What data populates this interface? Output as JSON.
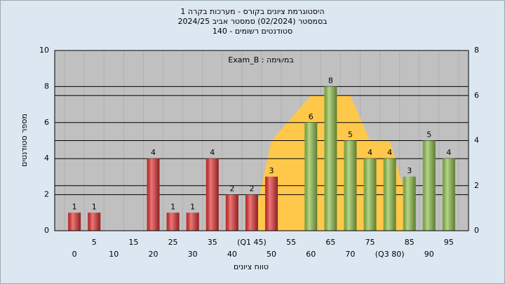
{
  "chart_data": {
    "type": "bar",
    "title": [
      "היסטוגרמת ציונים בקורס - מערכות בקרה 1",
      "בסמסטר  (02/2024)  סמסטר אביב 2024/25",
      "סטודנטים רשומים - 140"
    ],
    "annotation": "במשימה : Exam_B",
    "y_label": "מספר סטודנטים",
    "x_label": "טווח ציונים",
    "categories": [
      "0",
      "5",
      "10",
      "15",
      "20",
      "25",
      "30",
      "35",
      "40",
      "(Q1 45)",
      "50",
      "55",
      "60",
      "65",
      "70",
      "75",
      "(Q3 80)",
      "85",
      "90",
      "95"
    ],
    "values": [
      1,
      1,
      0,
      0,
      4,
      1,
      1,
      4,
      2,
      2,
      3,
      0,
      6,
      8,
      5,
      4,
      4,
      3,
      5,
      4
    ],
    "colors": [
      "#e03030",
      "#e03030",
      "#e03030",
      "#e03030",
      "#e03030",
      "#e03030",
      "#e03030",
      "#e03030",
      "#e03030",
      "#e03030",
      "#e03030",
      "#8fbf4a",
      "#8fbf4a",
      "#8fbf4a",
      "#8fbf4a",
      "#8fbf4a",
      "#8fbf4a",
      "#8fbf4a",
      "#8fbf4a",
      "#8fbf4a"
    ],
    "area": {
      "x": [
        45,
        50,
        55,
        60,
        65,
        70,
        75,
        80,
        85
      ],
      "values": [
        0,
        4,
        5,
        6,
        6,
        6,
        4,
        4,
        1
      ],
      "color": "#ffc84a",
      "axis": "y2"
    },
    "ylim": [
      0,
      10
    ],
    "yticks": [
      0,
      2,
      4,
      6,
      8,
      10
    ],
    "y2lim": [
      0,
      8
    ],
    "y2ticks": [
      0,
      2,
      4,
      6,
      8
    ],
    "grid": true
  }
}
